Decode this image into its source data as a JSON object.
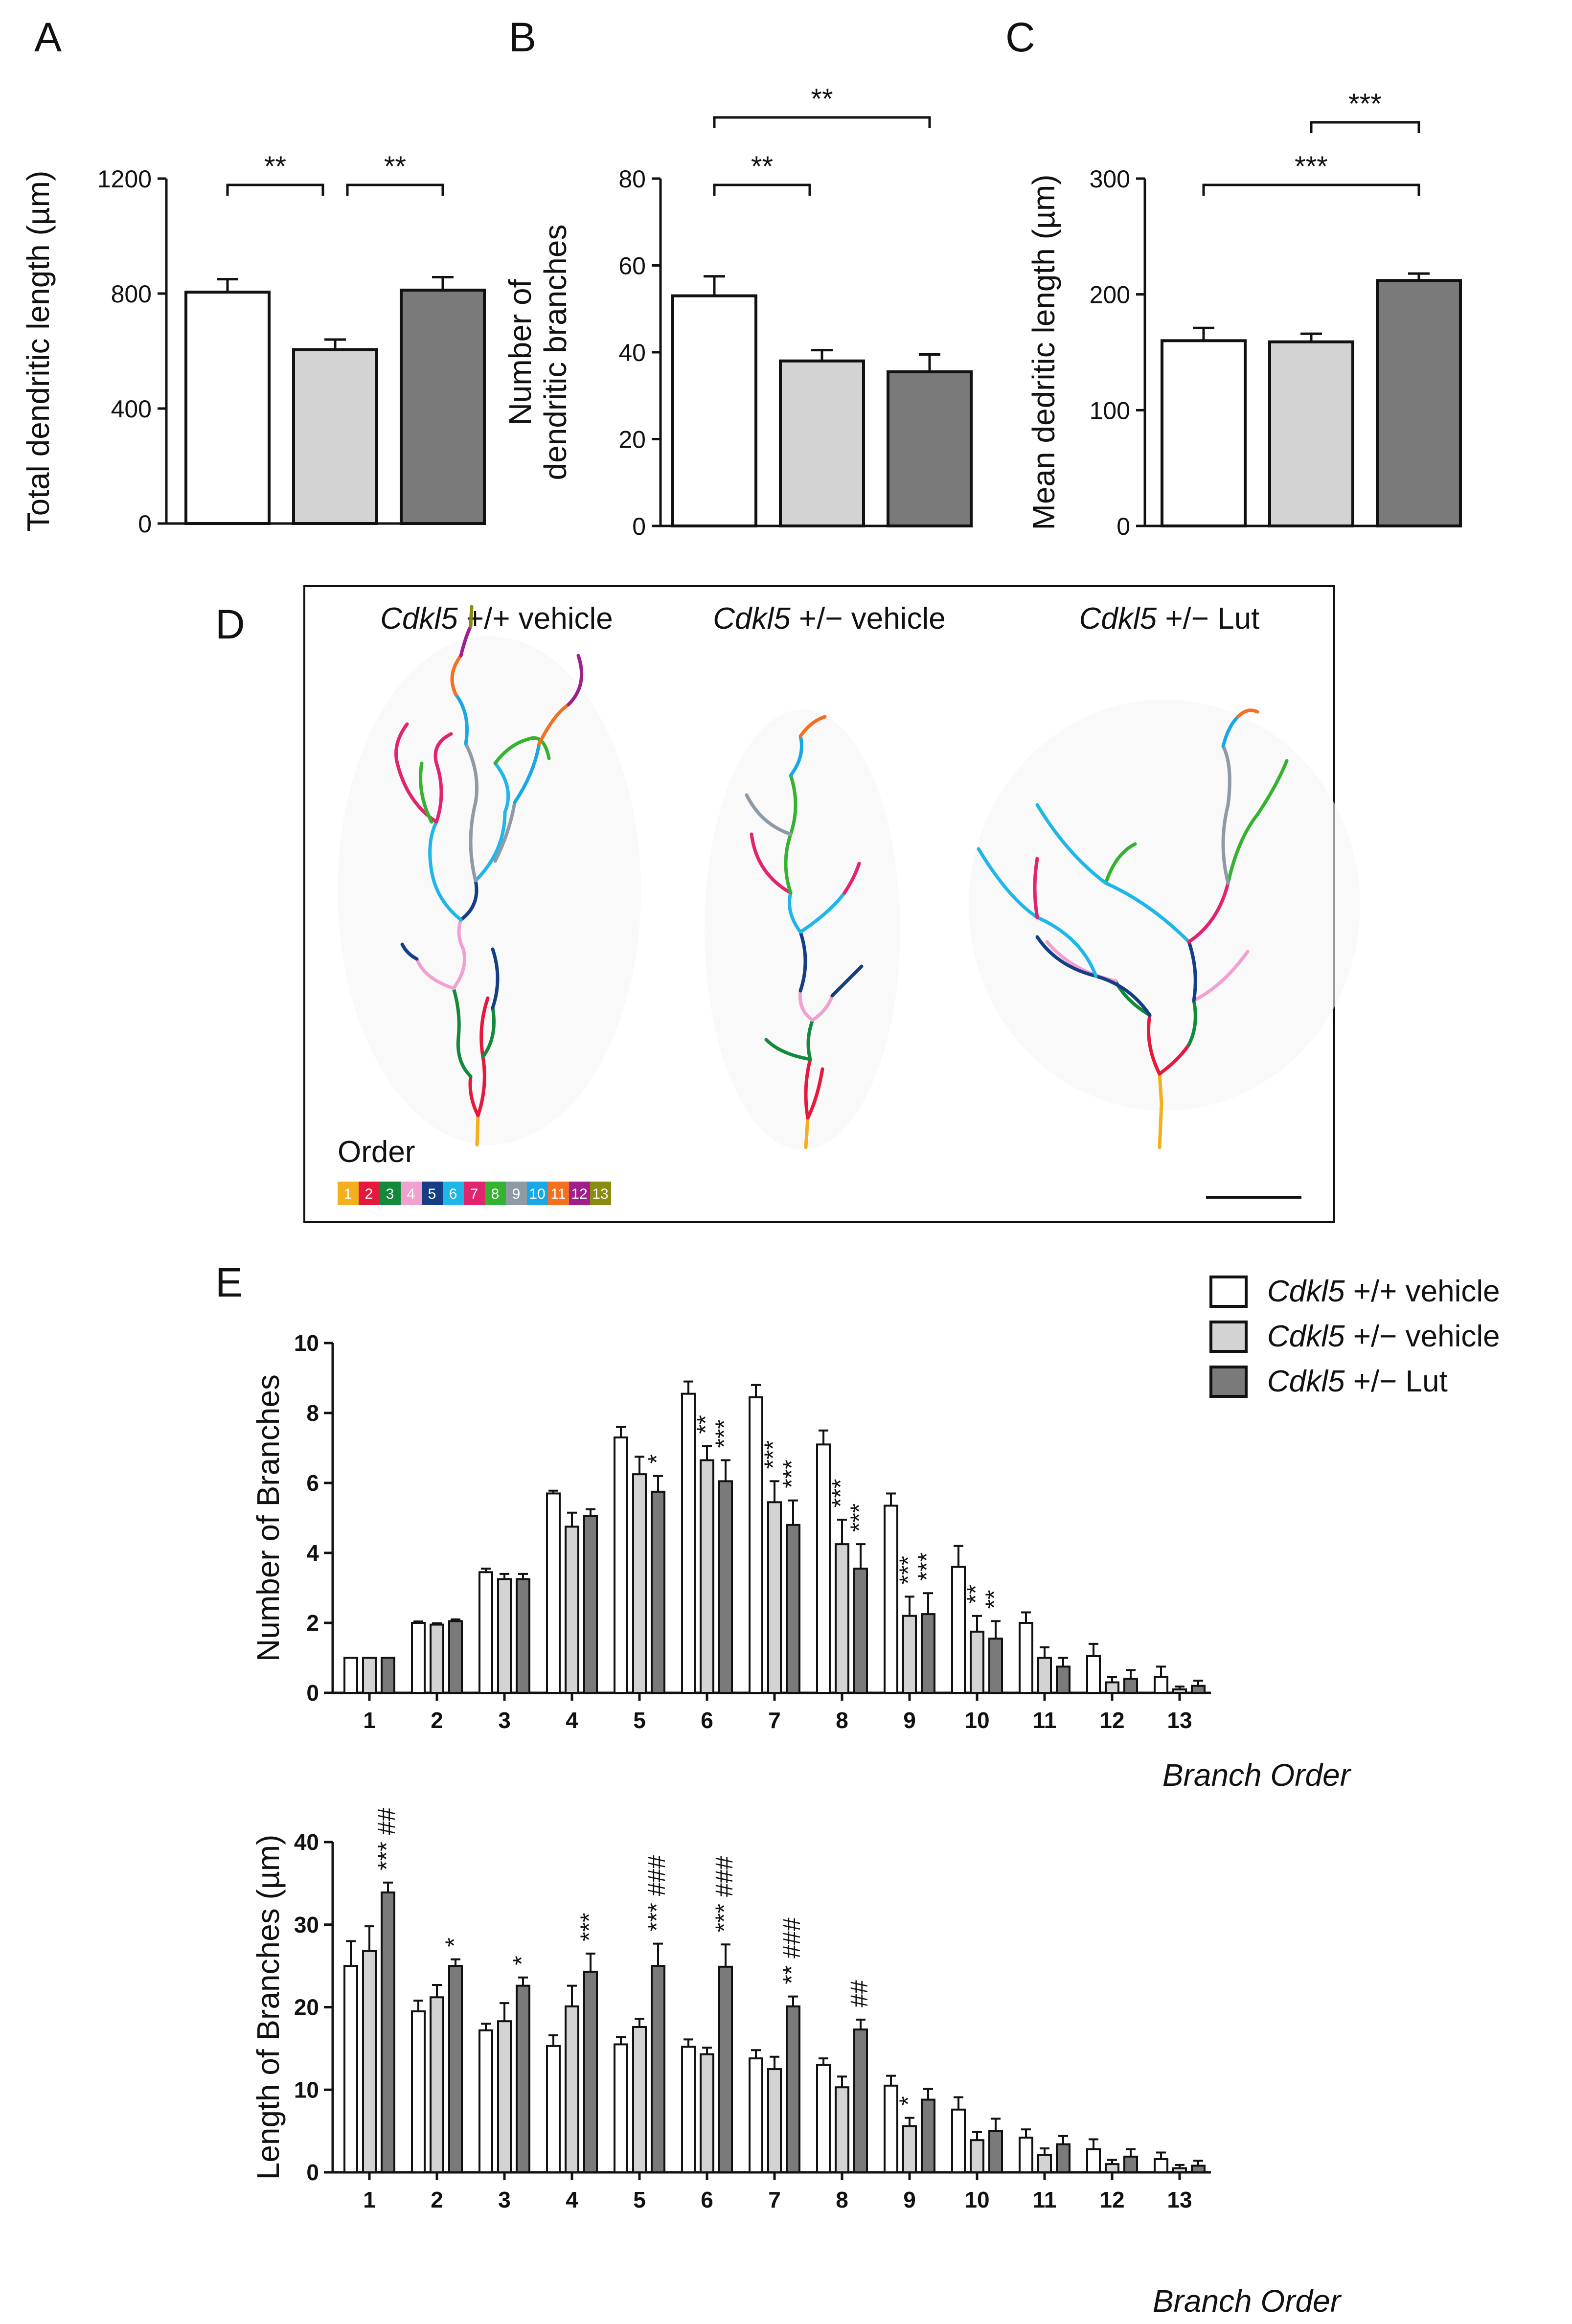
{
  "chart_data": [
    {
      "id": "A",
      "type": "bar",
      "panel_label": "A",
      "ylabel": "Total dendritic length (µm)",
      "ylim": [
        0,
        1200
      ],
      "yticks": [
        "0",
        "400",
        "800",
        "1200"
      ],
      "groups": [
        "Cdkl5 +/+ vehicle",
        "Cdkl5 +/− vehicle",
        "Cdkl5 +/− Lut"
      ],
      "values": [
        805,
        605,
        812
      ],
      "errors": [
        45,
        35,
        45
      ],
      "significance": [
        {
          "from": 0,
          "to": 1,
          "label": "**",
          "level": 0
        },
        {
          "from": 1,
          "to": 2,
          "label": "**",
          "level": 0
        }
      ]
    },
    {
      "id": "B",
      "type": "bar",
      "panel_label": "B",
      "ylabel_lines": [
        "Number of",
        "dendritic branches"
      ],
      "ylim": [
        0,
        80
      ],
      "yticks": [
        "0",
        "20",
        "40",
        "60",
        "80"
      ],
      "groups": [
        "Cdkl5 +/+ vehicle",
        "Cdkl5 +/− vehicle",
        "Cdkl5 +/− Lut"
      ],
      "values": [
        53,
        38,
        35.5
      ],
      "errors": [
        4.5,
        2.5,
        4
      ],
      "significance": [
        {
          "from": 0,
          "to": 1,
          "label": "**",
          "level": 0
        },
        {
          "from": 0,
          "to": 2,
          "label": "**",
          "level": 1
        }
      ]
    },
    {
      "id": "C",
      "type": "bar",
      "panel_label": "C",
      "ylabel": "Mean dedritic length (µm)",
      "ylim": [
        0,
        300
      ],
      "yticks": [
        "0",
        "100",
        "200",
        "300"
      ],
      "groups": [
        "Cdkl5 +/+ vehicle",
        "Cdkl5 +/− vehicle",
        "Cdkl5 +/− Lut"
      ],
      "values": [
        160,
        159,
        212
      ],
      "errors": [
        11,
        7,
        6
      ],
      "significance": [
        {
          "from": 0,
          "to": 2,
          "label": "***",
          "level": 0
        },
        {
          "from": 1,
          "to": 2,
          "label": "***",
          "level": 1
        }
      ]
    },
    {
      "id": "E1",
      "type": "bar",
      "panel_label": "E",
      "ylabel": "Number of Branches",
      "xlabel": "Branch Order",
      "ylim": [
        0,
        10
      ],
      "yticks": [
        "0",
        "2",
        "4",
        "6",
        "8",
        "10"
      ],
      "categories": [
        "1",
        "2",
        "3",
        "4",
        "5",
        "6",
        "7",
        "8",
        "9",
        "10",
        "11",
        "12",
        "13"
      ],
      "series": [
        {
          "name": "Cdkl5 +/+ vehicle",
          "values": [
            1,
            2,
            3.45,
            5.7,
            7.3,
            8.55,
            8.45,
            7.1,
            5.35,
            3.6,
            2.0,
            1.05,
            0.45
          ],
          "errors": [
            0,
            0.04,
            0.1,
            0.08,
            0.3,
            0.35,
            0.35,
            0.4,
            0.35,
            0.6,
            0.3,
            0.35,
            0.3
          ]
        },
        {
          "name": "Cdkl5 +/− vehicle",
          "values": [
            1,
            1.95,
            3.25,
            4.75,
            6.25,
            6.65,
            5.45,
            4.25,
            2.2,
            1.75,
            1.0,
            0.3,
            0.1
          ],
          "errors": [
            0,
            0.04,
            0.15,
            0.4,
            0.5,
            0.4,
            0.6,
            0.7,
            0.55,
            0.45,
            0.3,
            0.15,
            0.08
          ]
        },
        {
          "name": "Cdkl5 +/− Lut",
          "values": [
            1,
            2.05,
            3.25,
            5.05,
            5.75,
            6.05,
            4.8,
            3.55,
            2.25,
            1.55,
            0.75,
            0.4,
            0.2
          ],
          "errors": [
            0,
            0.05,
            0.15,
            0.2,
            0.45,
            0.6,
            0.7,
            0.7,
            0.6,
            0.5,
            0.25,
            0.25,
            0.15
          ]
        }
      ],
      "annotations": [
        {
          "category": 5,
          "series": 2,
          "label": "*"
        },
        {
          "category": 6,
          "series": 1,
          "label": "**"
        },
        {
          "category": 6,
          "series": 2,
          "label": "***"
        },
        {
          "category": 7,
          "series": 1,
          "label": "***"
        },
        {
          "category": 7,
          "series": 2,
          "label": "***"
        },
        {
          "category": 8,
          "series": 1,
          "label": "***"
        },
        {
          "category": 8,
          "series": 2,
          "label": "***"
        },
        {
          "category": 9,
          "series": 1,
          "label": "***"
        },
        {
          "category": 9,
          "series": 2,
          "label": "***"
        },
        {
          "category": 10,
          "series": 1,
          "label": "**"
        },
        {
          "category": 10,
          "series": 2,
          "label": "**"
        }
      ]
    },
    {
      "id": "E2",
      "type": "bar",
      "ylabel": "Length of Branches (µm)",
      "xlabel": "Branch Order",
      "ylim": [
        0,
        40
      ],
      "yticks": [
        "0",
        "10",
        "20",
        "30",
        "40"
      ],
      "categories": [
        "1",
        "2",
        "3",
        "4",
        "5",
        "6",
        "7",
        "8",
        "9",
        "10",
        "11",
        "12",
        "13"
      ],
      "series": [
        {
          "name": "Cdkl5 +/+ vehicle",
          "values": [
            25,
            19.5,
            17.2,
            15.3,
            15.5,
            15.2,
            13.8,
            13.0,
            10.5,
            7.6,
            4.2,
            2.8,
            1.6
          ],
          "errors": [
            3,
            1.3,
            0.8,
            1.3,
            0.9,
            0.9,
            1.0,
            0.8,
            1.2,
            1.5,
            1.0,
            1.2,
            0.8
          ]
        },
        {
          "name": "Cdkl5 +/− vehicle",
          "values": [
            26.8,
            21.2,
            18.3,
            20.1,
            17.6,
            14.3,
            12.5,
            10.3,
            5.6,
            3.9,
            2.1,
            1.0,
            0.5
          ],
          "errors": [
            3,
            1.5,
            2.2,
            2.5,
            1.0,
            0.8,
            1.5,
            1.3,
            1.0,
            1.0,
            0.8,
            0.5,
            0.4
          ]
        },
        {
          "name": "Cdkl5 +/− Lut",
          "values": [
            33.9,
            25.0,
            22.6,
            24.3,
            25.0,
            24.9,
            20.1,
            17.3,
            8.8,
            5.0,
            3.4,
            1.9,
            0.8
          ],
          "errors": [
            1.2,
            0.8,
            1.0,
            2.2,
            2.7,
            2.7,
            1.2,
            1.2,
            1.3,
            1.5,
            1.0,
            0.9,
            0.6
          ]
        }
      ],
      "annotations": [
        {
          "category": 1,
          "series": 2,
          "label": "*** ##"
        },
        {
          "category": 2,
          "series": 2,
          "label": "*"
        },
        {
          "category": 3,
          "series": 2,
          "label": "*"
        },
        {
          "category": 4,
          "series": 2,
          "label": "***"
        },
        {
          "category": 5,
          "series": 2,
          "label": "*** ###"
        },
        {
          "category": 6,
          "series": 2,
          "label": "*** ###"
        },
        {
          "category": 7,
          "series": 2,
          "label": "** ###"
        },
        {
          "category": 8,
          "series": 2,
          "label": "##"
        },
        {
          "category": 9,
          "series": 1,
          "label": "*"
        }
      ]
    }
  ],
  "panel_d": {
    "panel_label": "D",
    "neuron_titles": [
      {
        "gene": "Cdkl5",
        "rest": " +/+ vehicle"
      },
      {
        "gene": "Cdkl5",
        "rest": " +/− vehicle"
      },
      {
        "gene": "Cdkl5",
        "rest": " +/− Lut"
      }
    ],
    "order_label": "Order",
    "order_colors": [
      "#f3b01c",
      "#e5193d",
      "#138a3a",
      "#f1a1cf",
      "#163e85",
      "#1fb7ea",
      "#e2236e",
      "#35b22f",
      "#8e9aa4",
      "#19a8e6",
      "#f36f21",
      "#a0208b",
      "#8b8b12"
    ],
    "order_numbers": [
      "1",
      "2",
      "3",
      "4",
      "5",
      "6",
      "7",
      "8",
      "9",
      "10",
      "11",
      "12",
      "13"
    ]
  },
  "legend": {
    "entries": [
      {
        "gene": "Cdkl5",
        "rest": " +/+ vehicle",
        "fill": "#ffffff"
      },
      {
        "gene": "Cdkl5",
        "rest": " +/− vehicle",
        "fill": "#d3d3d3"
      },
      {
        "gene": "Cdkl5",
        "rest": " +/− Lut",
        "fill": "#7a7a7a"
      }
    ]
  },
  "colors": {
    "wt": "#ffffff",
    "het": "#d3d3d3",
    "lut": "#7a7a7a",
    "stroke": "#111111"
  }
}
